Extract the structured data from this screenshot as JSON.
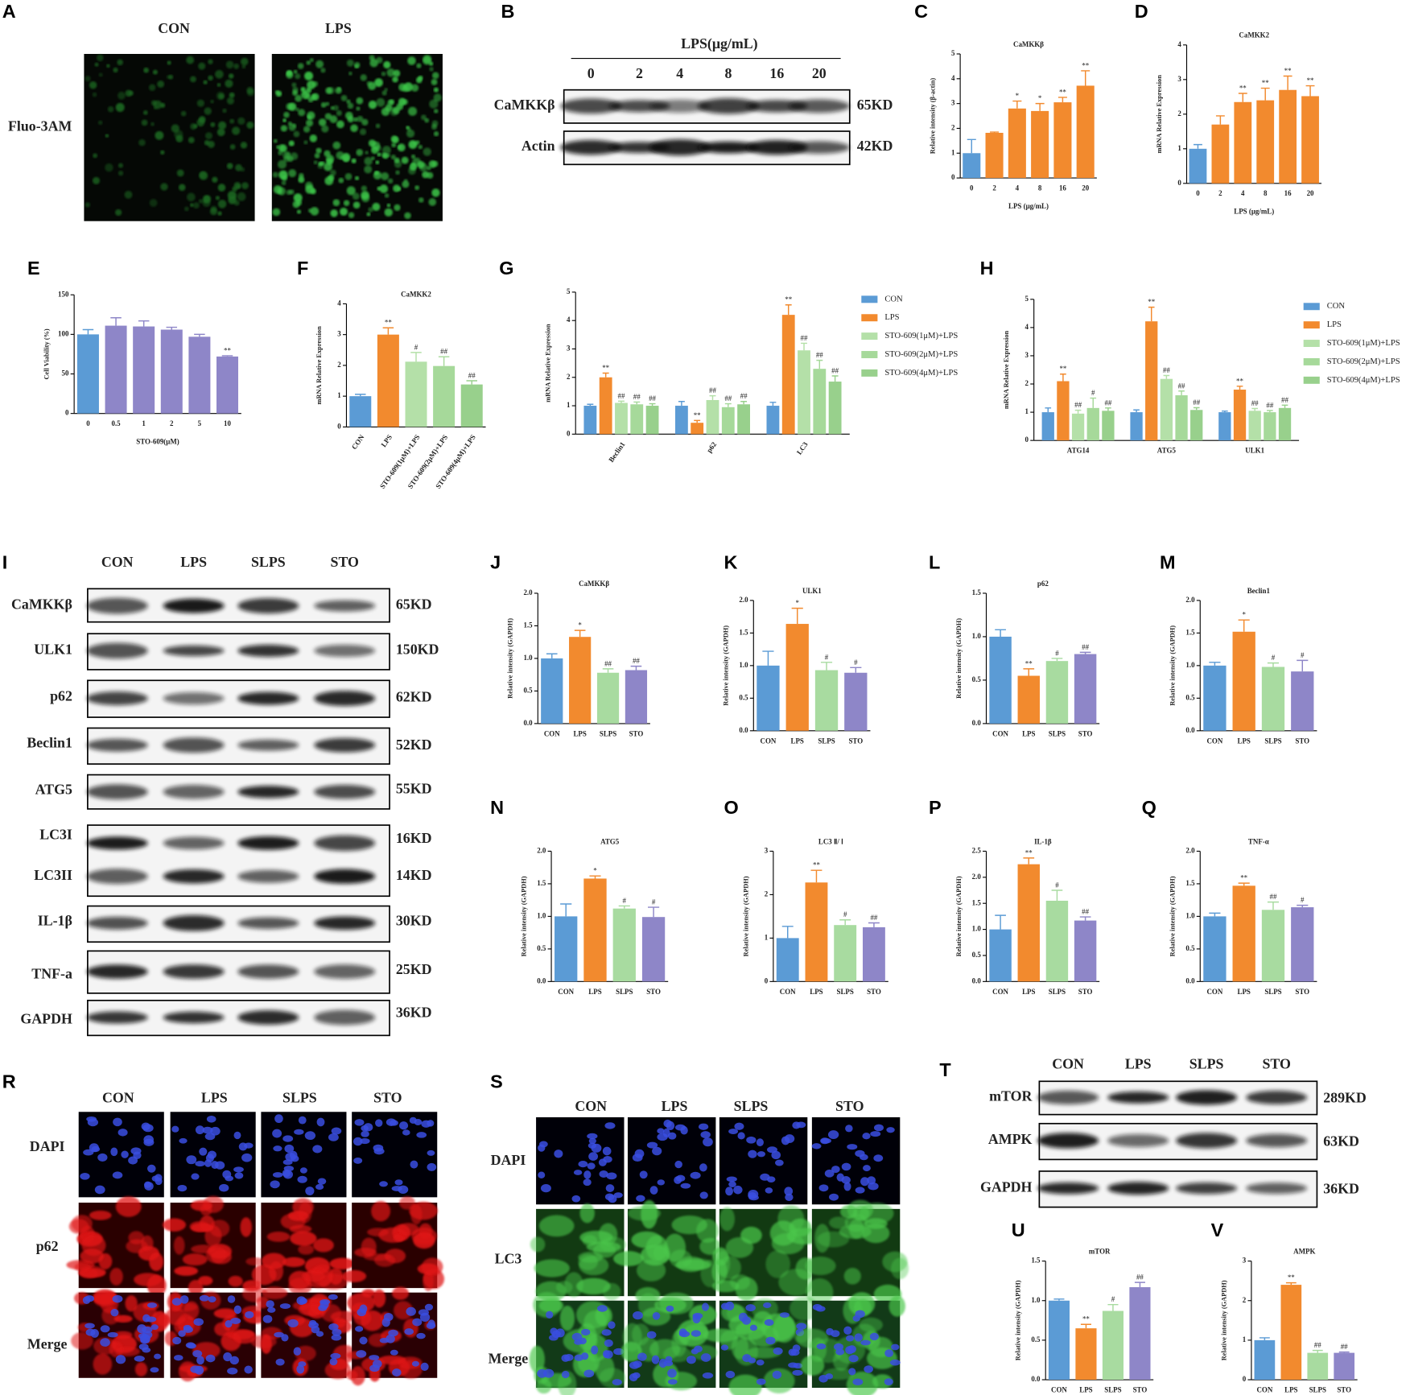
{
  "figure": {
    "A": {
      "letter": "A",
      "columns": [
        "CON",
        "LPS"
      ],
      "row": "Fluo-3AM"
    },
    "B": {
      "letter": "B",
      "header": "LPS(μg/mL)",
      "lanes": [
        "0",
        "2",
        "4",
        "8",
        "16",
        "20"
      ],
      "rows": [
        {
          "label": "CaMKKβ",
          "size": "65KD"
        },
        {
          "label": "Actin",
          "size": "42KD"
        }
      ]
    },
    "I": {
      "letter": "I",
      "columns": [
        "CON",
        "LPS",
        "SLPS",
        "STO"
      ],
      "rows": [
        {
          "label": "CaMKKβ",
          "size": "65KD"
        },
        {
          "label": "ULK1",
          "size": "150KD"
        },
        {
          "label": "p62",
          "size": "62KD"
        },
        {
          "label": "Beclin1",
          "size": "52KD"
        },
        {
          "label": "ATG5",
          "size": "55KD"
        },
        {
          "label": "LC3I",
          "size": "16KD"
        },
        {
          "label": "LC3II",
          "size": "14KD"
        },
        {
          "label": "IL-1β",
          "size": "30KD"
        },
        {
          "label": "TNF-a",
          "size": "25KD"
        },
        {
          "label": "GAPDH",
          "size": "36KD"
        }
      ]
    },
    "R": {
      "letter": "R",
      "columns": [
        "CON",
        "LPS",
        "SLPS",
        "STO"
      ],
      "rows": [
        "DAPI",
        "p62",
        "Merge"
      ]
    },
    "S": {
      "letter": "S",
      "columns": [
        "CON",
        "LPS",
        "SLPS",
        "STO"
      ],
      "rows": [
        "DAPI",
        "LC3",
        "Merge"
      ]
    },
    "T": {
      "letter": "T",
      "columns": [
        "CON",
        "LPS",
        "SLPS",
        "STO"
      ],
      "rows": [
        {
          "label": "mTOR",
          "size": "289KD"
        },
        {
          "label": "AMPK",
          "size": "63KD"
        },
        {
          "label": "GAPDH",
          "size": "36KD"
        }
      ]
    }
  },
  "chart_data": [
    {
      "type": "bar",
      "panel": "C",
      "title": "CaMKKβ",
      "ylabel": "Relative intensity (β-actin)",
      "xlabel": "LPS (μg/mL)",
      "categories": [
        "0",
        "2",
        "4",
        "8",
        "16",
        "20"
      ],
      "values": [
        1,
        1.82,
        2.8,
        2.7,
        3.05,
        3.72
      ],
      "errors": [
        0.55,
        0.03,
        0.3,
        0.3,
        0.2,
        0.6
      ],
      "annotations": [
        null,
        null,
        "*",
        "*",
        "**",
        "**"
      ],
      "colors": [
        "#5b9bd5",
        "#f28a2e",
        "#f28a2e",
        "#f28a2e",
        "#f28a2e",
        "#f28a2e"
      ],
      "ylim": [
        0,
        5
      ],
      "yticks": [
        0,
        1,
        2,
        3,
        4,
        5
      ]
    },
    {
      "type": "bar",
      "panel": "D",
      "title": "CaMKK2",
      "ylabel": "mRNA Relative Expression",
      "xlabel": "LPS (μg/mL)",
      "categories": [
        "0",
        "2",
        "4",
        "8",
        "16",
        "20"
      ],
      "values": [
        1,
        1.7,
        2.35,
        2.4,
        2.7,
        2.52
      ],
      "errors": [
        0.12,
        0.25,
        0.25,
        0.35,
        0.4,
        0.3
      ],
      "annotations": [
        null,
        null,
        "**",
        "**",
        "**",
        "**"
      ],
      "colors": [
        "#5b9bd5",
        "#f28a2e",
        "#f28a2e",
        "#f28a2e",
        "#f28a2e",
        "#f28a2e"
      ],
      "ylim": [
        0,
        4
      ],
      "yticks": [
        0,
        1,
        2,
        3,
        4
      ]
    },
    {
      "type": "bar",
      "panel": "E",
      "ylabel": "Cell Viability (%)",
      "xlabel": "STO-609(μM)",
      "categories": [
        "0",
        "0.5",
        "1",
        "2",
        "5",
        "10"
      ],
      "values": [
        100,
        111,
        110,
        106,
        97,
        72
      ],
      "errors": [
        6,
        10,
        7,
        3,
        3,
        1
      ],
      "annotations": [
        null,
        null,
        null,
        null,
        null,
        "**"
      ],
      "colors": [
        "#5b9bd5",
        "#8e86c8",
        "#8e86c8",
        "#8e86c8",
        "#8e86c8",
        "#8e86c8"
      ],
      "ylim": [
        0,
        150
      ],
      "yticks": [
        0,
        50,
        100,
        150
      ]
    },
    {
      "type": "bar",
      "panel": "F",
      "title": "CaMKK2",
      "ylabel": "mRNA Relative Expression",
      "categories": [
        "CON",
        "LPS",
        "STO-609(1μM)+LPS",
        "STO-609(2μM)+LPS",
        "STO-609(4μM)+LPS"
      ],
      "values": [
        1,
        3,
        2.12,
        1.98,
        1.38
      ],
      "errors": [
        0.06,
        0.22,
        0.3,
        0.3,
        0.12
      ],
      "annotations": [
        null,
        "**",
        "#",
        "##",
        "##"
      ],
      "colors": [
        "#5b9bd5",
        "#f28a2e",
        "#b4e0a8",
        "#a6d99a",
        "#98d08c"
      ],
      "ylim": [
        0,
        4
      ],
      "yticks": [
        0,
        1,
        2,
        3,
        4
      ]
    },
    {
      "type": "bar",
      "panel": "G",
      "ylabel": "mRNA Relative Expression",
      "categories": [
        "Beclin1",
        "p62",
        "LC3"
      ],
      "series": [
        {
          "name": "CON",
          "color": "#5b9bd5",
          "values": [
            1,
            1,
            1
          ],
          "errors": [
            0.05,
            0.15,
            0.12
          ],
          "annotations": [
            null,
            null,
            null
          ]
        },
        {
          "name": "LPS",
          "color": "#f28a2e",
          "values": [
            2,
            0.4,
            4.2
          ],
          "errors": [
            0.15,
            0.08,
            0.35
          ],
          "annotations": [
            "**",
            "**",
            "**"
          ]
        },
        {
          "name": "STO-609(1μM)+LPS",
          "color": "#b4e0a8",
          "values": [
            1.1,
            1.2,
            2.95
          ],
          "errors": [
            0.06,
            0.15,
            0.25
          ],
          "annotations": [
            "##",
            "##",
            "##"
          ]
        },
        {
          "name": "STO-609(2μM)+LPS",
          "color": "#a6d99a",
          "values": [
            1.05,
            0.95,
            2.3
          ],
          "errors": [
            0.08,
            0.12,
            0.3
          ],
          "annotations": [
            "##",
            "##",
            "##"
          ]
        },
        {
          "name": "STO-609(4μM)+LPS",
          "color": "#98d08c",
          "values": [
            1,
            1.05,
            1.85
          ],
          "errors": [
            0.07,
            0.1,
            0.2
          ],
          "annotations": [
            "##",
            "##",
            "##"
          ]
        }
      ],
      "ylim": [
        0,
        5
      ],
      "yticks": [
        0,
        1,
        2,
        3,
        4,
        5
      ]
    },
    {
      "type": "bar",
      "panel": "H",
      "ylabel": "mRNA Relative Expression",
      "categories": [
        "ATG14",
        "ATG5",
        "ULK1"
      ],
      "series": [
        {
          "name": "CON",
          "color": "#5b9bd5",
          "values": [
            1,
            1,
            1
          ],
          "errors": [
            0.15,
            0.08,
            0.04
          ],
          "annotations": [
            null,
            null,
            null
          ]
        },
        {
          "name": "LPS",
          "color": "#f28a2e",
          "values": [
            2.1,
            4.22,
            1.8
          ],
          "errors": [
            0.25,
            0.5,
            0.12
          ],
          "annotations": [
            "**",
            "**",
            "**"
          ]
        },
        {
          "name": "STO-609(1μM)+LPS",
          "color": "#b4e0a8",
          "values": [
            0.95,
            2.18,
            1.05
          ],
          "errors": [
            0.12,
            0.12,
            0.08
          ],
          "annotations": [
            "##",
            "##",
            "##"
          ]
        },
        {
          "name": "STO-609(2μM)+LPS",
          "color": "#a6d99a",
          "values": [
            1.15,
            1.6,
            1
          ],
          "errors": [
            0.35,
            0.15,
            0.06
          ],
          "annotations": [
            "#",
            "##",
            "##"
          ]
        },
        {
          "name": "STO-609(4μM)+LPS",
          "color": "#98d08c",
          "values": [
            1.05,
            1.08,
            1.15
          ],
          "errors": [
            0.1,
            0.08,
            0.1
          ],
          "annotations": [
            "##",
            "##",
            "##"
          ]
        }
      ],
      "ylim": [
        0,
        5
      ],
      "yticks": [
        0,
        1,
        2,
        3,
        4,
        5
      ]
    },
    {
      "type": "bar",
      "panel": "J",
      "title": "CaMKKβ",
      "ylabel": "Relative intensity (GAPDH)",
      "categories": [
        "CON",
        "LPS",
        "SLPS",
        "STO"
      ],
      "values": [
        1,
        1.33,
        0.78,
        0.82
      ],
      "errors": [
        0.07,
        0.1,
        0.06,
        0.06
      ],
      "annotations": [
        null,
        "*",
        "##",
        "##"
      ],
      "colors": [
        "#5b9bd5",
        "#f28a2e",
        "#a8dba0",
        "#8e86c8"
      ],
      "ylim": [
        0,
        2
      ],
      "yticks": [
        {
          "value": 0,
          "label": "0.0"
        },
        {
          "value": 0.5,
          "label": "0.5"
        },
        {
          "value": 1,
          "label": "1.0"
        },
        {
          "value": 1.5,
          "label": "1.5"
        },
        {
          "value": 2,
          "label": "2.0"
        }
      ]
    },
    {
      "type": "bar",
      "panel": "K",
      "title": "ULK1",
      "ylabel": "Relative intensity (GAPDH)",
      "categories": [
        "CON",
        "LPS",
        "SLPS",
        "STO"
      ],
      "values": [
        1,
        1.64,
        0.93,
        0.89
      ],
      "errors": [
        0.22,
        0.24,
        0.12,
        0.08
      ],
      "annotations": [
        null,
        "*",
        "#",
        "#"
      ],
      "colors": [
        "#5b9bd5",
        "#f28a2e",
        "#a8dba0",
        "#8e86c8"
      ],
      "ylim": [
        0,
        2
      ],
      "yticks": [
        {
          "value": 0,
          "label": "0.0"
        },
        {
          "value": 0.5,
          "label": "0.5"
        },
        {
          "value": 1,
          "label": "1.0"
        },
        {
          "value": 1.5,
          "label": "1.5"
        },
        {
          "value": 2,
          "label": "2.0"
        }
      ]
    },
    {
      "type": "bar",
      "panel": "L",
      "title": "p62",
      "ylabel": "Relative intensity (GAPDH)",
      "categories": [
        "CON",
        "LPS",
        "SLPS",
        "STO"
      ],
      "values": [
        1,
        0.55,
        0.72,
        0.8
      ],
      "errors": [
        0.08,
        0.08,
        0.03,
        0.02
      ],
      "annotations": [
        null,
        "**",
        "#",
        "##"
      ],
      "colors": [
        "#5b9bd5",
        "#f28a2e",
        "#a8dba0",
        "#8e86c8"
      ],
      "ylim": [
        0,
        1.5
      ],
      "yticks": [
        {
          "value": 0,
          "label": "0.0"
        },
        {
          "value": 0.5,
          "label": "0.5"
        },
        {
          "value": 1,
          "label": "1.0"
        },
        {
          "value": 1.5,
          "label": "1.5"
        }
      ]
    },
    {
      "type": "bar",
      "panel": "M",
      "title": "Beclin1",
      "ylabel": "Relative intensity (GAPDH)",
      "categories": [
        "CON",
        "LPS",
        "SLPS",
        "STO"
      ],
      "values": [
        1,
        1.52,
        0.98,
        0.91
      ],
      "errors": [
        0.05,
        0.18,
        0.06,
        0.17
      ],
      "annotations": [
        null,
        "*",
        "#",
        "#"
      ],
      "colors": [
        "#5b9bd5",
        "#f28a2e",
        "#a8dba0",
        "#8e86c8"
      ],
      "ylim": [
        0,
        2
      ],
      "yticks": [
        {
          "value": 0,
          "label": "0.0"
        },
        {
          "value": 0.5,
          "label": "0.5"
        },
        {
          "value": 1,
          "label": "1.0"
        },
        {
          "value": 1.5,
          "label": "1.5"
        },
        {
          "value": 2,
          "label": "2.0"
        }
      ]
    },
    {
      "type": "bar",
      "panel": "N",
      "title": "ATG5",
      "ylabel": "Relative intensity (GAPDH)",
      "categories": [
        "CON",
        "LPS",
        "SLPS",
        "STO"
      ],
      "values": [
        1,
        1.58,
        1.12,
        0.99
      ],
      "errors": [
        0.19,
        0.04,
        0.04,
        0.15
      ],
      "annotations": [
        null,
        "*",
        "#",
        "#"
      ],
      "colors": [
        "#5b9bd5",
        "#f28a2e",
        "#a8dba0",
        "#8e86c8"
      ],
      "ylim": [
        0,
        2
      ],
      "yticks": [
        {
          "value": 0,
          "label": "0.0"
        },
        {
          "value": 0.5,
          "label": "0.5"
        },
        {
          "value": 1,
          "label": "1.0"
        },
        {
          "value": 1.5,
          "label": "1.5"
        },
        {
          "value": 2,
          "label": "2.0"
        }
      ]
    },
    {
      "type": "bar",
      "panel": "O",
      "title": "LC3 Ⅱ/ Ⅰ",
      "ylabel": "Relative intensity (GAPDH)",
      "categories": [
        "CON",
        "LPS",
        "SLPS",
        "STO"
      ],
      "values": [
        1,
        2.28,
        1.3,
        1.25
      ],
      "errors": [
        0.27,
        0.28,
        0.12,
        0.1
      ],
      "annotations": [
        null,
        "**",
        "#",
        "##"
      ],
      "colors": [
        "#5b9bd5",
        "#f28a2e",
        "#a8dba0",
        "#8e86c8"
      ],
      "ylim": [
        0,
        3
      ],
      "yticks": [
        0,
        1,
        2,
        3
      ]
    },
    {
      "type": "bar",
      "panel": "P",
      "title": "IL-1β",
      "ylabel": "Relative intensity (GAPDH)",
      "categories": [
        "CON",
        "LPS",
        "SLPS",
        "STO"
      ],
      "values": [
        1,
        2.25,
        1.55,
        1.17
      ],
      "errors": [
        0.27,
        0.12,
        0.2,
        0.07
      ],
      "annotations": [
        null,
        "**",
        "#",
        "##"
      ],
      "colors": [
        "#5b9bd5",
        "#f28a2e",
        "#a8dba0",
        "#8e86c8"
      ],
      "ylim": [
        0,
        2.5
      ],
      "yticks": [
        {
          "value": 0,
          "label": "0.0"
        },
        {
          "value": 0.5,
          "label": "0.5"
        },
        {
          "value": 1,
          "label": "1.0"
        },
        {
          "value": 1.5,
          "label": "1.5"
        },
        {
          "value": 2,
          "label": "2.0"
        },
        {
          "value": 2.5,
          "label": "2.5"
        }
      ]
    },
    {
      "type": "bar",
      "panel": "Q",
      "title": "TNF-α",
      "ylabel": "Relative intensity (GAPDH)",
      "categories": [
        "CON",
        "LPS",
        "SLPS",
        "STO"
      ],
      "values": [
        1,
        1.47,
        1.1,
        1.14
      ],
      "errors": [
        0.05,
        0.04,
        0.12,
        0.03
      ],
      "annotations": [
        null,
        "**",
        "##",
        "#"
      ],
      "colors": [
        "#5b9bd5",
        "#f28a2e",
        "#a8dba0",
        "#8e86c8"
      ],
      "ylim": [
        0,
        2
      ],
      "yticks": [
        {
          "value": 0,
          "label": "0.0"
        },
        {
          "value": 0.5,
          "label": "0.5"
        },
        {
          "value": 1,
          "label": "1.0"
        },
        {
          "value": 1.5,
          "label": "1.5"
        },
        {
          "value": 2,
          "label": "2.0"
        }
      ]
    },
    {
      "type": "bar",
      "panel": "U",
      "title": "mTOR",
      "ylabel": "Relative intensity (GAPDH)",
      "categories": [
        "CON",
        "LPS",
        "SLPS",
        "STO"
      ],
      "values": [
        1,
        0.65,
        0.87,
        1.17
      ],
      "errors": [
        0.02,
        0.05,
        0.08,
        0.06
      ],
      "annotations": [
        null,
        "**",
        "#",
        "##"
      ],
      "colors": [
        "#5b9bd5",
        "#f28a2e",
        "#a8dba0",
        "#8e86c8"
      ],
      "ylim": [
        0,
        1.5
      ],
      "yticks": [
        {
          "value": 0,
          "label": "0.0"
        },
        {
          "value": 0.5,
          "label": "0.5"
        },
        {
          "value": 1,
          "label": "1.0"
        },
        {
          "value": 1.5,
          "label": "1.5"
        }
      ]
    },
    {
      "type": "bar",
      "panel": "V",
      "title": "AMPK",
      "ylabel": "Relative intensity (GAPDH)",
      "categories": [
        "CON",
        "LPS",
        "SLPS",
        "STO"
      ],
      "values": [
        1,
        2.4,
        0.68,
        0.68
      ],
      "errors": [
        0.06,
        0.05,
        0.06,
        0.02
      ],
      "annotations": [
        null,
        "**",
        "##",
        "##"
      ],
      "colors": [
        "#5b9bd5",
        "#f28a2e",
        "#a8dba0",
        "#8e86c8"
      ],
      "ylim": [
        0,
        3
      ],
      "yticks": [
        0,
        1,
        2,
        3
      ]
    }
  ]
}
